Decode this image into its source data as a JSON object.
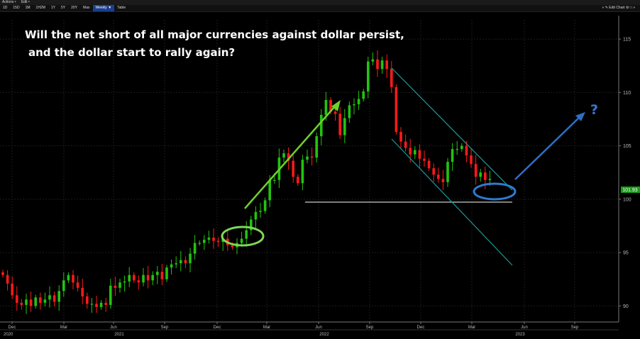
{
  "menubar": {
    "actions": "Actions •",
    "edit": "Edit •"
  },
  "toolbar": {
    "periods": [
      "1D",
      "15D",
      "1M",
      "1H2M",
      "1Y",
      "5Y",
      "20Y",
      "Max"
    ],
    "weekly": "Weekly ▼",
    "table": "Table",
    "edit_chart": "« ✎ Edit Chart ⚙ □ »"
  },
  "colors": {
    "up": "#22c40e",
    "down": "#ff1a1a",
    "uptrend_arrow": "#6fd02a",
    "forecast_arrow": "#2e6fc4",
    "channel": "#1a9a9a",
    "last_badge": "#1a9a1a"
  },
  "annotations": {
    "title_line1": "Will the net short of all major currencies against dollar persist,",
    "title_line2": "and the dollar start to rally again?",
    "question_mark": "?"
  },
  "chart_data": {
    "type": "candlestick",
    "ylim": [
      88.5,
      116.8
    ],
    "yticks": [
      90,
      95,
      100,
      105,
      110,
      115
    ],
    "last_price_label": "101.93",
    "x_month_labels": [
      "Dec",
      "Mar",
      "Jun",
      "Sep",
      "Dec",
      "Mar",
      "Jun",
      "Sep",
      "Dec",
      "Mar",
      "Jun",
      "Sep"
    ],
    "x_year_labels": [
      "2020",
      "2021",
      "2022",
      "2023"
    ],
    "support_level": 100.8,
    "weekly_close": [
      92.9,
      92.1,
      91.0,
      90.3,
      90.1,
      90.6,
      90.0,
      90.8,
      90.3,
      90.6,
      91.0,
      90.4,
      91.4,
      92.4,
      92.9,
      92.2,
      91.7,
      90.9,
      90.2,
      90.2,
      89.9,
      90.3,
      90.1,
      91.9,
      91.7,
      92.2,
      92.3,
      92.9,
      92.4,
      92.2,
      92.9,
      92.4,
      92.9,
      93.2,
      92.5,
      93.6,
      93.9,
      94.0,
      94.3,
      94.0,
      94.9,
      95.9,
      95.9,
      96.2,
      96.4,
      96.1,
      96.0,
      96.3,
      95.7,
      95.5,
      95.9,
      96.3,
      97.1,
      98.1,
      98.8,
      98.9,
      99.9,
      101.8,
      101.8,
      103.9,
      104.3,
      103.6,
      102.1,
      101.5,
      103.7,
      104.0,
      103.9,
      105.9,
      107.9,
      109.3,
      108.2,
      108.0,
      106.0,
      107.6,
      108.8,
      108.9,
      109.4,
      110.1,
      112.9,
      113.1,
      112.2,
      113.0,
      112.2,
      110.5,
      106.3,
      105.4,
      104.8,
      104.2,
      104.6,
      103.8,
      103.6,
      102.9,
      102.3,
      101.9,
      101.6,
      103.5,
      104.7,
      104.7,
      105.0,
      104.1,
      103.3,
      102.1,
      102.5,
      101.8,
      101.9
    ]
  }
}
